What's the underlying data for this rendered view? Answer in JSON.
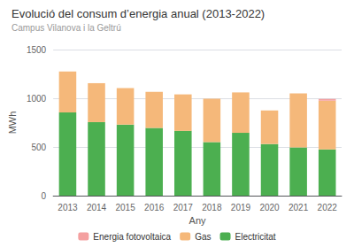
{
  "chart_data": {
    "type": "bar",
    "title": "Evolució del consum d’energia anual (2013-2022)",
    "subtitle": "Campus Vilanova i la Geltrú",
    "xlabel": "Any",
    "ylabel": "MWh",
    "categories": [
      "2013",
      "2014",
      "2015",
      "2016",
      "2017",
      "2018",
      "2019",
      "2020",
      "2021",
      "2022"
    ],
    "series": [
      {
        "name": "Electricitat",
        "color": "#4caf50",
        "values": [
          855,
          755,
          730,
          695,
          665,
          550,
          645,
          530,
          495,
          475
        ]
      },
      {
        "name": "Gas",
        "color": "#f5b87a",
        "values": [
          420,
          400,
          375,
          370,
          375,
          445,
          415,
          345,
          555,
          500
        ]
      },
      {
        "name": "Energia fotovoltaica",
        "color": "#f4a0a0",
        "values": [
          0,
          0,
          0,
          0,
          0,
          0,
          0,
          0,
          0,
          18
        ]
      }
    ],
    "stacked": true,
    "ylim": [
      0,
      1500
    ],
    "yticks": [
      0,
      500,
      1000,
      1500
    ],
    "grid": true,
    "legend": "bottom"
  }
}
